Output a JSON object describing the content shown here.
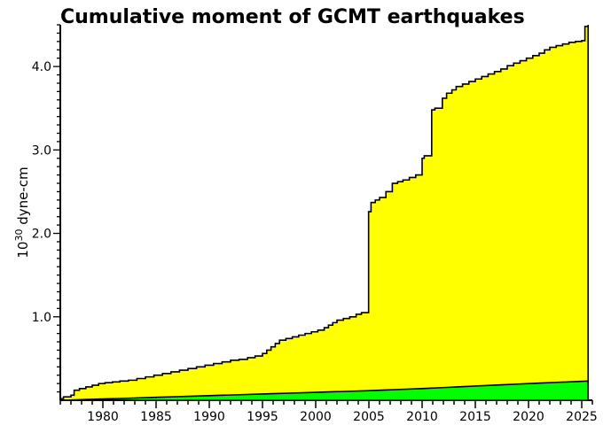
{
  "chart_data": {
    "type": "area",
    "title": "Cumulative moment of GCMT earthquakes",
    "ylabel": "dyne-cm",
    "ylabel_prefix": "10",
    "ylabel_exponent": "30",
    "xlim": [
      1976,
      2026
    ],
    "ylim": [
      0,
      4.5
    ],
    "x_ticks": [
      1980,
      1985,
      1990,
      1995,
      2000,
      2005,
      2010,
      2015,
      2020,
      2025
    ],
    "y_ticks": [
      "1.0",
      "2.0",
      "3.0",
      "4.0"
    ],
    "y_tick_values": [
      1.0,
      2.0,
      3.0,
      4.0
    ],
    "grid": false,
    "series": [
      {
        "color": "#ffff00",
        "step": true,
        "x": [
          1976,
          1976.3,
          1977.0,
          1977.3,
          1977.8,
          1978.4,
          1979.0,
          1979.6,
          1980.2,
          1980.9,
          1981.6,
          1982.4,
          1983.2,
          1984.0,
          1984.8,
          1985.6,
          1986.4,
          1987.2,
          1988.0,
          1988.8,
          1989.6,
          1990.4,
          1991.2,
          1992.0,
          1992.8,
          1993.6,
          1994.3,
          1995.0,
          1995.4,
          1995.8,
          1996.2,
          1996.6,
          1997.2,
          1997.8,
          1998.4,
          1999.0,
          1999.6,
          2000.2,
          2000.8,
          2001.2,
          2001.6,
          2002.0,
          2002.6,
          2003.2,
          2003.8,
          2004.3,
          2004.97,
          2005.2,
          2005.6,
          2006.0,
          2006.6,
          2007.2,
          2007.7,
          2008.2,
          2008.8,
          2009.4,
          2010.0,
          2010.2,
          2010.9,
          2011.2,
          2011.9,
          2012.3,
          2012.8,
          2013.2,
          2013.8,
          2014.4,
          2015.0,
          2015.6,
          2016.2,
          2016.8,
          2017.4,
          2018.0,
          2018.6,
          2019.2,
          2019.8,
          2020.4,
          2021.0,
          2021.5,
          2022.0,
          2022.6,
          2023.2,
          2023.8,
          2024.4,
          2025.0,
          2025.3,
          2025.6
        ],
        "values": [
          0.02,
          0.04,
          0.06,
          0.12,
          0.14,
          0.16,
          0.18,
          0.2,
          0.21,
          0.22,
          0.23,
          0.24,
          0.26,
          0.28,
          0.3,
          0.32,
          0.34,
          0.36,
          0.38,
          0.4,
          0.42,
          0.44,
          0.46,
          0.48,
          0.49,
          0.51,
          0.53,
          0.56,
          0.6,
          0.64,
          0.68,
          0.72,
          0.74,
          0.76,
          0.78,
          0.8,
          0.82,
          0.84,
          0.87,
          0.9,
          0.93,
          0.96,
          0.98,
          1.0,
          1.03,
          1.05,
          2.26,
          2.37,
          2.4,
          2.43,
          2.5,
          2.6,
          2.62,
          2.64,
          2.67,
          2.7,
          2.9,
          2.93,
          3.48,
          3.5,
          3.62,
          3.68,
          3.72,
          3.76,
          3.79,
          3.82,
          3.85,
          3.88,
          3.91,
          3.94,
          3.97,
          4.01,
          4.04,
          4.07,
          4.1,
          4.13,
          4.16,
          4.2,
          4.23,
          4.25,
          4.27,
          4.29,
          4.3,
          4.31,
          4.48,
          4.5
        ]
      },
      {
        "color": "#00ff00",
        "step": false,
        "x": [
          1976,
          1980,
          1985,
          1990,
          1995,
          2000,
          2005,
          2010,
          2015,
          2020,
          2025.6
        ],
        "values": [
          0.0,
          0.015,
          0.035,
          0.055,
          0.075,
          0.095,
          0.115,
          0.14,
          0.17,
          0.2,
          0.23
        ]
      }
    ]
  }
}
